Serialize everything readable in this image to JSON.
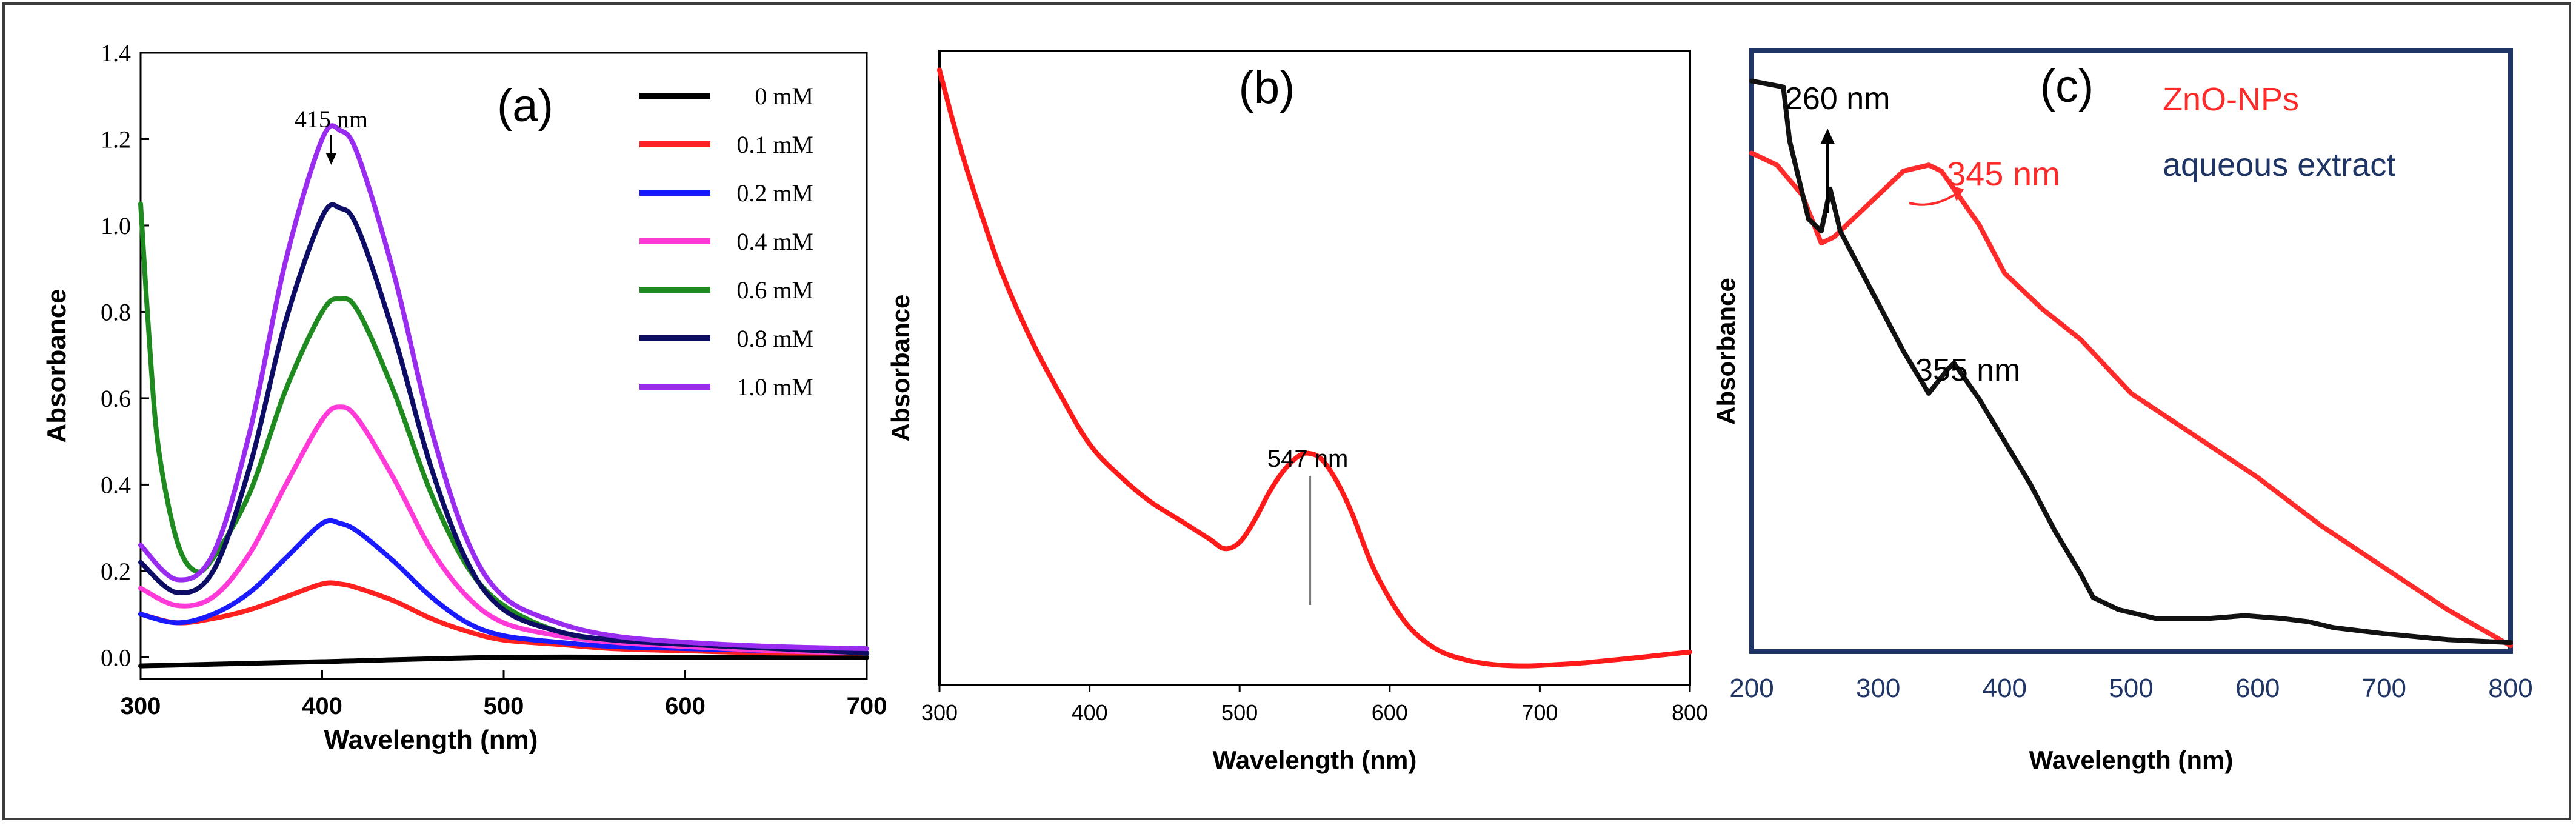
{
  "chart_data": [
    {
      "type": "line",
      "panel_label": "(a)",
      "xlabel": "Wavelength (nm)",
      "ylabel": "Absorbance",
      "xlim": [
        300,
        700
      ],
      "ylim": [
        -0.05,
        1.4
      ],
      "xticks": [
        300,
        400,
        500,
        600,
        700
      ],
      "yticks": [
        0.0,
        0.2,
        0.4,
        0.6,
        0.8,
        1.0,
        1.2,
        1.4
      ],
      "ytick_labels": [
        "0.0",
        "0.2",
        "0.4",
        "0.6",
        "0.8",
        "1.0",
        "1.2",
        "1.4"
      ],
      "annotation": {
        "text": "415 nm",
        "x": 405,
        "y": 1.23
      },
      "legend": "top-right",
      "series": [
        {
          "name": "0 mM",
          "color": "#000000",
          "x": [
            300,
            400,
            500,
            600,
            700
          ],
          "y": [
            -0.02,
            -0.01,
            0.0,
            0.0,
            0.0
          ]
        },
        {
          "name": "0.1 mM",
          "color": "#ff2020",
          "x": [
            300,
            320,
            340,
            360,
            380,
            400,
            410,
            420,
            440,
            460,
            480,
            500,
            530,
            560,
            600,
            650,
            700
          ],
          "y": [
            0.1,
            0.08,
            0.09,
            0.11,
            0.14,
            0.17,
            0.17,
            0.16,
            0.13,
            0.09,
            0.06,
            0.04,
            0.03,
            0.02,
            0.015,
            0.01,
            0.01
          ]
        },
        {
          "name": "0.2 mM",
          "color": "#1a1aff",
          "x": [
            300,
            320,
            340,
            360,
            380,
            400,
            410,
            420,
            440,
            460,
            480,
            500,
            530,
            560,
            600,
            650,
            700
          ],
          "y": [
            0.1,
            0.08,
            0.1,
            0.15,
            0.23,
            0.31,
            0.31,
            0.29,
            0.22,
            0.14,
            0.08,
            0.05,
            0.035,
            0.025,
            0.02,
            0.015,
            0.01
          ]
        },
        {
          "name": "0.4 mM",
          "color": "#ff3ad8",
          "x": [
            300,
            320,
            340,
            360,
            380,
            400,
            410,
            420,
            440,
            460,
            480,
            500,
            530,
            560,
            600,
            650,
            700
          ],
          "y": [
            0.16,
            0.12,
            0.14,
            0.24,
            0.4,
            0.55,
            0.58,
            0.55,
            0.41,
            0.25,
            0.14,
            0.08,
            0.05,
            0.035,
            0.025,
            0.015,
            0.01
          ]
        },
        {
          "name": "0.6 mM",
          "color": "#1f8a1f",
          "x": [
            300,
            305,
            310,
            320,
            330,
            340,
            360,
            380,
            400,
            410,
            420,
            440,
            460,
            480,
            500,
            530,
            560,
            600,
            650,
            700
          ],
          "y": [
            1.05,
            0.72,
            0.48,
            0.27,
            0.2,
            0.23,
            0.38,
            0.62,
            0.8,
            0.83,
            0.8,
            0.61,
            0.38,
            0.21,
            0.12,
            0.06,
            0.04,
            0.03,
            0.02,
            0.01
          ]
        },
        {
          "name": "0.8 mM",
          "color": "#0d0d66",
          "x": [
            300,
            320,
            340,
            360,
            380,
            400,
            410,
            420,
            440,
            460,
            480,
            500,
            530,
            560,
            600,
            650,
            700
          ],
          "y": [
            0.22,
            0.15,
            0.2,
            0.44,
            0.78,
            1.02,
            1.04,
            0.99,
            0.74,
            0.44,
            0.22,
            0.11,
            0.06,
            0.04,
            0.03,
            0.02,
            0.01
          ]
        },
        {
          "name": "1.0 mM",
          "color": "#9a2cf0",
          "x": [
            300,
            320,
            340,
            360,
            380,
            400,
            410,
            420,
            440,
            460,
            480,
            500,
            530,
            560,
            600,
            650,
            700
          ],
          "y": [
            0.26,
            0.18,
            0.24,
            0.52,
            0.92,
            1.2,
            1.22,
            1.16,
            0.88,
            0.53,
            0.27,
            0.14,
            0.08,
            0.05,
            0.035,
            0.025,
            0.02
          ]
        }
      ]
    },
    {
      "type": "line",
      "panel_label": "(b)",
      "xlabel": "Wavelength (nm)",
      "ylabel": "Absorbance",
      "xlim": [
        300,
        800
      ],
      "ylim": [
        0,
        1
      ],
      "xticks": [
        300,
        400,
        500,
        600,
        700,
        800
      ],
      "annotation": {
        "text": "547 nm",
        "x": 547,
        "y": 0.25
      },
      "series": [
        {
          "name": "spectrum",
          "color": "#ff1a1a",
          "x": [
            300,
            310,
            320,
            340,
            360,
            380,
            400,
            420,
            440,
            460,
            480,
            490,
            500,
            510,
            520,
            530,
            540,
            547,
            555,
            565,
            575,
            590,
            610,
            630,
            650,
            670,
            690,
            710,
            730,
            760,
            800
          ],
          "y": [
            0.97,
            0.88,
            0.8,
            0.66,
            0.55,
            0.46,
            0.38,
            0.33,
            0.29,
            0.26,
            0.23,
            0.215,
            0.225,
            0.26,
            0.305,
            0.34,
            0.362,
            0.365,
            0.355,
            0.32,
            0.27,
            0.18,
            0.1,
            0.058,
            0.04,
            0.032,
            0.03,
            0.032,
            0.035,
            0.042,
            0.052
          ]
        }
      ]
    },
    {
      "type": "line",
      "panel_label": "(c)",
      "xlabel": "Wavelength (nm)",
      "ylabel": "Absorbance",
      "xlim": [
        200,
        800
      ],
      "ylim": [
        0,
        1
      ],
      "xticks": [
        200,
        300,
        400,
        500,
        600,
        700,
        800
      ],
      "legend": "top-right",
      "annotations": [
        {
          "text": "260 nm",
          "x": 260,
          "y": 0.83
        },
        {
          "text": "345 nm",
          "x": 345,
          "y": 0.76
        },
        {
          "text": "355 nm",
          "x": 355,
          "y": 0.5
        }
      ],
      "series": [
        {
          "name": "ZnO-NPs",
          "color": "#ff2a2a",
          "x": [
            200,
            220,
            240,
            255,
            265,
            280,
            300,
            320,
            340,
            350,
            360,
            380,
            400,
            430,
            460,
            500,
            550,
            600,
            650,
            700,
            750,
            800
          ],
          "y": [
            0.83,
            0.81,
            0.76,
            0.68,
            0.69,
            0.72,
            0.76,
            0.8,
            0.81,
            0.8,
            0.77,
            0.71,
            0.63,
            0.57,
            0.52,
            0.43,
            0.36,
            0.29,
            0.21,
            0.14,
            0.07,
            0.01
          ]
        },
        {
          "name": "aqueous extract",
          "color": "#111111",
          "x": [
            200,
            225,
            230,
            245,
            255,
            262,
            270,
            285,
            300,
            320,
            340,
            355,
            360,
            380,
            400,
            420,
            440,
            460,
            470,
            490,
            520,
            560,
            590,
            620,
            640,
            660,
            700,
            750,
            800
          ],
          "y": [
            0.95,
            0.94,
            0.85,
            0.72,
            0.7,
            0.77,
            0.7,
            0.64,
            0.58,
            0.5,
            0.43,
            0.47,
            0.48,
            0.42,
            0.35,
            0.28,
            0.2,
            0.13,
            0.09,
            0.07,
            0.055,
            0.055,
            0.06,
            0.055,
            0.05,
            0.04,
            0.03,
            0.02,
            0.015
          ]
        }
      ]
    }
  ]
}
